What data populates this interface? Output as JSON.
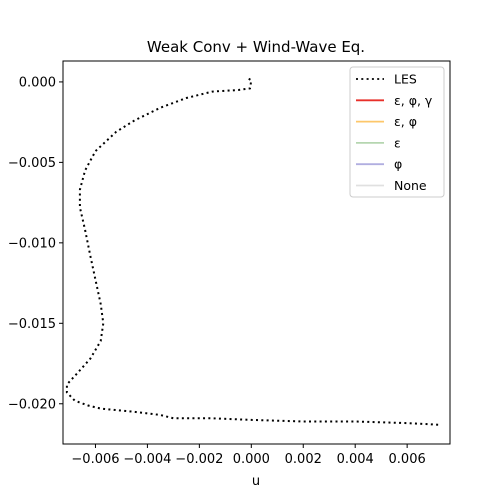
{
  "chart_data": {
    "type": "line",
    "title": "Weak Conv + Wind-Wave Eq.",
    "xlabel": "u",
    "ylabel": "",
    "xlim": [
      -0.00725,
      0.00765
    ],
    "ylim": [
      -0.0225,
      0.0013
    ],
    "xticks": [
      -0.006,
      -0.004,
      -0.002,
      0.0,
      0.002,
      0.004,
      0.006
    ],
    "xtick_labels": [
      "−0.006",
      "−0.004",
      "−0.002",
      "0.000",
      "0.002",
      "0.004",
      "0.006"
    ],
    "yticks": [
      0.0,
      -0.005,
      -0.01,
      -0.015,
      -0.02
    ],
    "ytick_labels": [
      "0.000",
      "−0.005",
      "−0.010",
      "−0.015",
      "−0.020"
    ],
    "grid": false,
    "legend_position": "top-right",
    "series": [
      {
        "name": "LES",
        "color": "#000000",
        "style": "dotted",
        "x": [
          -0.0001,
          0.0,
          -5e-05,
          -0.0005,
          -0.0015,
          -0.0025,
          -0.0035,
          -0.0045,
          -0.0052,
          -0.006,
          -0.0064,
          -0.0066,
          -0.0066,
          -0.0064,
          -0.0062,
          -0.006,
          -0.0058,
          -0.0057,
          -0.0058,
          -0.0062,
          -0.0067,
          -0.0071,
          -0.0071,
          -0.0068,
          -0.0063,
          -0.0058,
          -0.0045,
          -0.0035,
          -0.003,
          -0.0015,
          0.0,
          0.002,
          0.004,
          0.006,
          0.0072
        ],
        "y": [
          0.0002,
          0.0001,
          -0.0004,
          -0.0005,
          -0.0006,
          -0.001,
          -0.0016,
          -0.0024,
          -0.0031,
          -0.0043,
          -0.0055,
          -0.0067,
          -0.0078,
          -0.0092,
          -0.0108,
          -0.0123,
          -0.0138,
          -0.015,
          -0.0161,
          -0.0172,
          -0.0181,
          -0.0188,
          -0.0193,
          -0.0198,
          -0.0201,
          -0.0203,
          -0.0205,
          -0.0207,
          -0.0209,
          -0.0209,
          -0.021,
          -0.0211,
          -0.0211,
          -0.0212,
          -0.0213
        ]
      },
      {
        "name": "ε, φ, γ",
        "color": "#e8302a",
        "style": "solid",
        "x": [],
        "y": []
      },
      {
        "name": "ε, φ",
        "color": "#fdc76a",
        "style": "solid",
        "x": [],
        "y": []
      },
      {
        "name": "ε",
        "color": "#b5d6b0",
        "style": "solid",
        "x": [],
        "y": []
      },
      {
        "name": "φ",
        "color": "#b1aee0",
        "style": "solid",
        "x": [],
        "y": []
      },
      {
        "name": "None",
        "color": "#e0e0e0",
        "style": "solid",
        "x": [],
        "y": []
      }
    ]
  }
}
